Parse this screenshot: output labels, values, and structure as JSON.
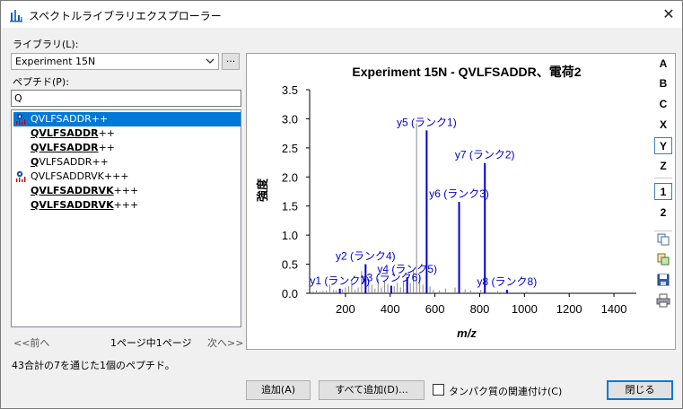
{
  "window": {
    "title": "スペクトルライブラリエクスプローラー"
  },
  "library": {
    "label": "ライブラリ(L):",
    "selected": "Experiment 15N",
    "browse_label": "..."
  },
  "peptide": {
    "label": "ペプチド(P):",
    "filter_value": "Q"
  },
  "peptides": [
    {
      "bold": "QVLFSADDR",
      "plain": "++",
      "icon": "peptide-target",
      "selected": true
    },
    {
      "bold": "QVLFSADDR",
      "plain": "++",
      "icon": "",
      "selected": false
    },
    {
      "bold": "QVLFSADDR",
      "plain": "++",
      "icon": "",
      "selected": false
    },
    {
      "bold": "Q",
      "plain": "VLFSADDR++",
      "icon": "",
      "selected": false
    },
    {
      "bold": "",
      "plain": "QVLFSADDRVK+++",
      "icon": "peptide-target",
      "selected": false
    },
    {
      "bold": "QVLFSADDRVK",
      "plain": "+++",
      "icon": "",
      "selected": false
    },
    {
      "bold": "QVLFSADDRVK",
      "plain": "+++",
      "icon": "",
      "selected": false
    }
  ],
  "pager": {
    "prev": "<<前へ",
    "info": "1ページ中1ページ",
    "next": "次へ>>"
  },
  "status": "43合計の7を通じた1個のペプチド。",
  "toolbar": {
    "ions": [
      "A",
      "B",
      "C",
      "X",
      "Y",
      "Z"
    ],
    "ions_on": [
      "Y"
    ],
    "charges": [
      "1",
      "2"
    ],
    "charges_on": [
      "1"
    ],
    "icons": [
      "copy-icon",
      "copy-data-icon",
      "save-icon",
      "print-icon"
    ]
  },
  "buttons": {
    "add": "追加(A)",
    "add_all": "すべて追加(D)...",
    "associate_label": "タンパク質の関連付け(C)",
    "close": "閉じる"
  },
  "colors": {
    "ion": "#0000cc",
    "noise": "#888888",
    "selection": "#0078d7"
  },
  "chart_data": {
    "type": "bar",
    "title": "Experiment 15N - QVLFSADDR、電荷2",
    "xlabel": "m/z",
    "ylabel": "強度",
    "xlim": [
      40,
      1500
    ],
    "ylim": [
      0,
      3.5
    ],
    "xticks": [
      200,
      400,
      600,
      800,
      1000,
      1200,
      1400
    ],
    "yticks": [
      0.0,
      0.5,
      1.0,
      1.5,
      2.0,
      2.5,
      3.0,
      3.5
    ],
    "annotated_peaks": [
      {
        "label": "y1 (ランク7)",
        "mz": 175,
        "intensity": 0.08
      },
      {
        "label": "y2 (ランク4)",
        "mz": 290,
        "intensity": 0.5
      },
      {
        "label": "y3 (ランク6)",
        "mz": 405,
        "intensity": 0.13
      },
      {
        "label": "y4 (ランク5)",
        "mz": 476,
        "intensity": 0.28
      },
      {
        "label": "y5 (ランク1)",
        "mz": 563,
        "intensity": 2.8
      },
      {
        "label": "y6 (ランク3)",
        "mz": 708,
        "intensity": 1.57
      },
      {
        "label": "y7 (ランク2)",
        "mz": 823,
        "intensity": 2.24
      },
      {
        "label": "y8 (ランク8)",
        "mz": 922,
        "intensity": 0.06
      }
    ],
    "unannotated_peaks": [
      {
        "mz": 55,
        "intensity": 0.03
      },
      {
        "mz": 70,
        "intensity": 0.05
      },
      {
        "mz": 86,
        "intensity": 0.03
      },
      {
        "mz": 100,
        "intensity": 0.04
      },
      {
        "mz": 115,
        "intensity": 0.05
      },
      {
        "mz": 130,
        "intensity": 0.15
      },
      {
        "mz": 147,
        "intensity": 0.06
      },
      {
        "mz": 158,
        "intensity": 0.05
      },
      {
        "mz": 186,
        "intensity": 0.07
      },
      {
        "mz": 200,
        "intensity": 0.1
      },
      {
        "mz": 215,
        "intensity": 0.12
      },
      {
        "mz": 228,
        "intensity": 0.22
      },
      {
        "mz": 243,
        "intensity": 0.06
      },
      {
        "mz": 257,
        "intensity": 0.1
      },
      {
        "mz": 272,
        "intensity": 0.38
      },
      {
        "mz": 304,
        "intensity": 0.2
      },
      {
        "mz": 318,
        "intensity": 0.15
      },
      {
        "mz": 332,
        "intensity": 0.08
      },
      {
        "mz": 346,
        "intensity": 0.25
      },
      {
        "mz": 361,
        "intensity": 0.1
      },
      {
        "mz": 375,
        "intensity": 0.2
      },
      {
        "mz": 389,
        "intensity": 0.16
      },
      {
        "mz": 418,
        "intensity": 0.12
      },
      {
        "mz": 432,
        "intensity": 0.18
      },
      {
        "mz": 446,
        "intensity": 0.1
      },
      {
        "mz": 459,
        "intensity": 0.22
      },
      {
        "mz": 490,
        "intensity": 0.18
      },
      {
        "mz": 504,
        "intensity": 0.4
      },
      {
        "mz": 518,
        "intensity": 2.92
      },
      {
        "mz": 532,
        "intensity": 0.3
      },
      {
        "mz": 546,
        "intensity": 0.15
      },
      {
        "mz": 578,
        "intensity": 0.12
      },
      {
        "mz": 593,
        "intensity": 0.06
      },
      {
        "mz": 620,
        "intensity": 0.05
      },
      {
        "mz": 648,
        "intensity": 0.08
      },
      {
        "mz": 690,
        "intensity": 0.1
      },
      {
        "mz": 735,
        "intensity": 0.07
      },
      {
        "mz": 760,
        "intensity": 0.05
      },
      {
        "mz": 805,
        "intensity": 0.06
      },
      {
        "mz": 880,
        "intensity": 0.04
      },
      {
        "mz": 1010,
        "intensity": 0.03
      }
    ],
    "grid": false,
    "legend": "none"
  }
}
